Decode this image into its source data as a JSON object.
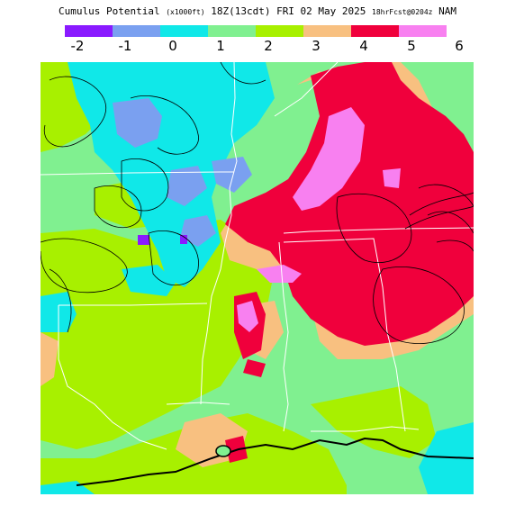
{
  "title": {
    "field": "Cumulus Potential",
    "units": "(x1000ft)",
    "time": "18Z(13cdt) FRI 02 May 2025",
    "forecast": "18hrFcst@0204z",
    "model": "NAM"
  },
  "legend": {
    "ticks": [
      "-2",
      "-1",
      "0",
      "1",
      "2",
      "3",
      "4",
      "5",
      "6"
    ],
    "colors": [
      "#8a1aff",
      "#7aa0f0",
      "#10e8e8",
      "#80f090",
      "#a8f000",
      "#f8c080",
      "#f0003c",
      "#f880f0"
    ]
  },
  "map_colors": {
    "lt_green": "#80f090",
    "yel_green": "#a8f000",
    "cyan": "#10e8e8",
    "blue": "#7aa0f0",
    "purple": "#8a1aff",
    "orange": "#f8c080",
    "red": "#f0003c",
    "pink": "#f880f0",
    "border": "#ffffff",
    "contour": "#000000"
  }
}
